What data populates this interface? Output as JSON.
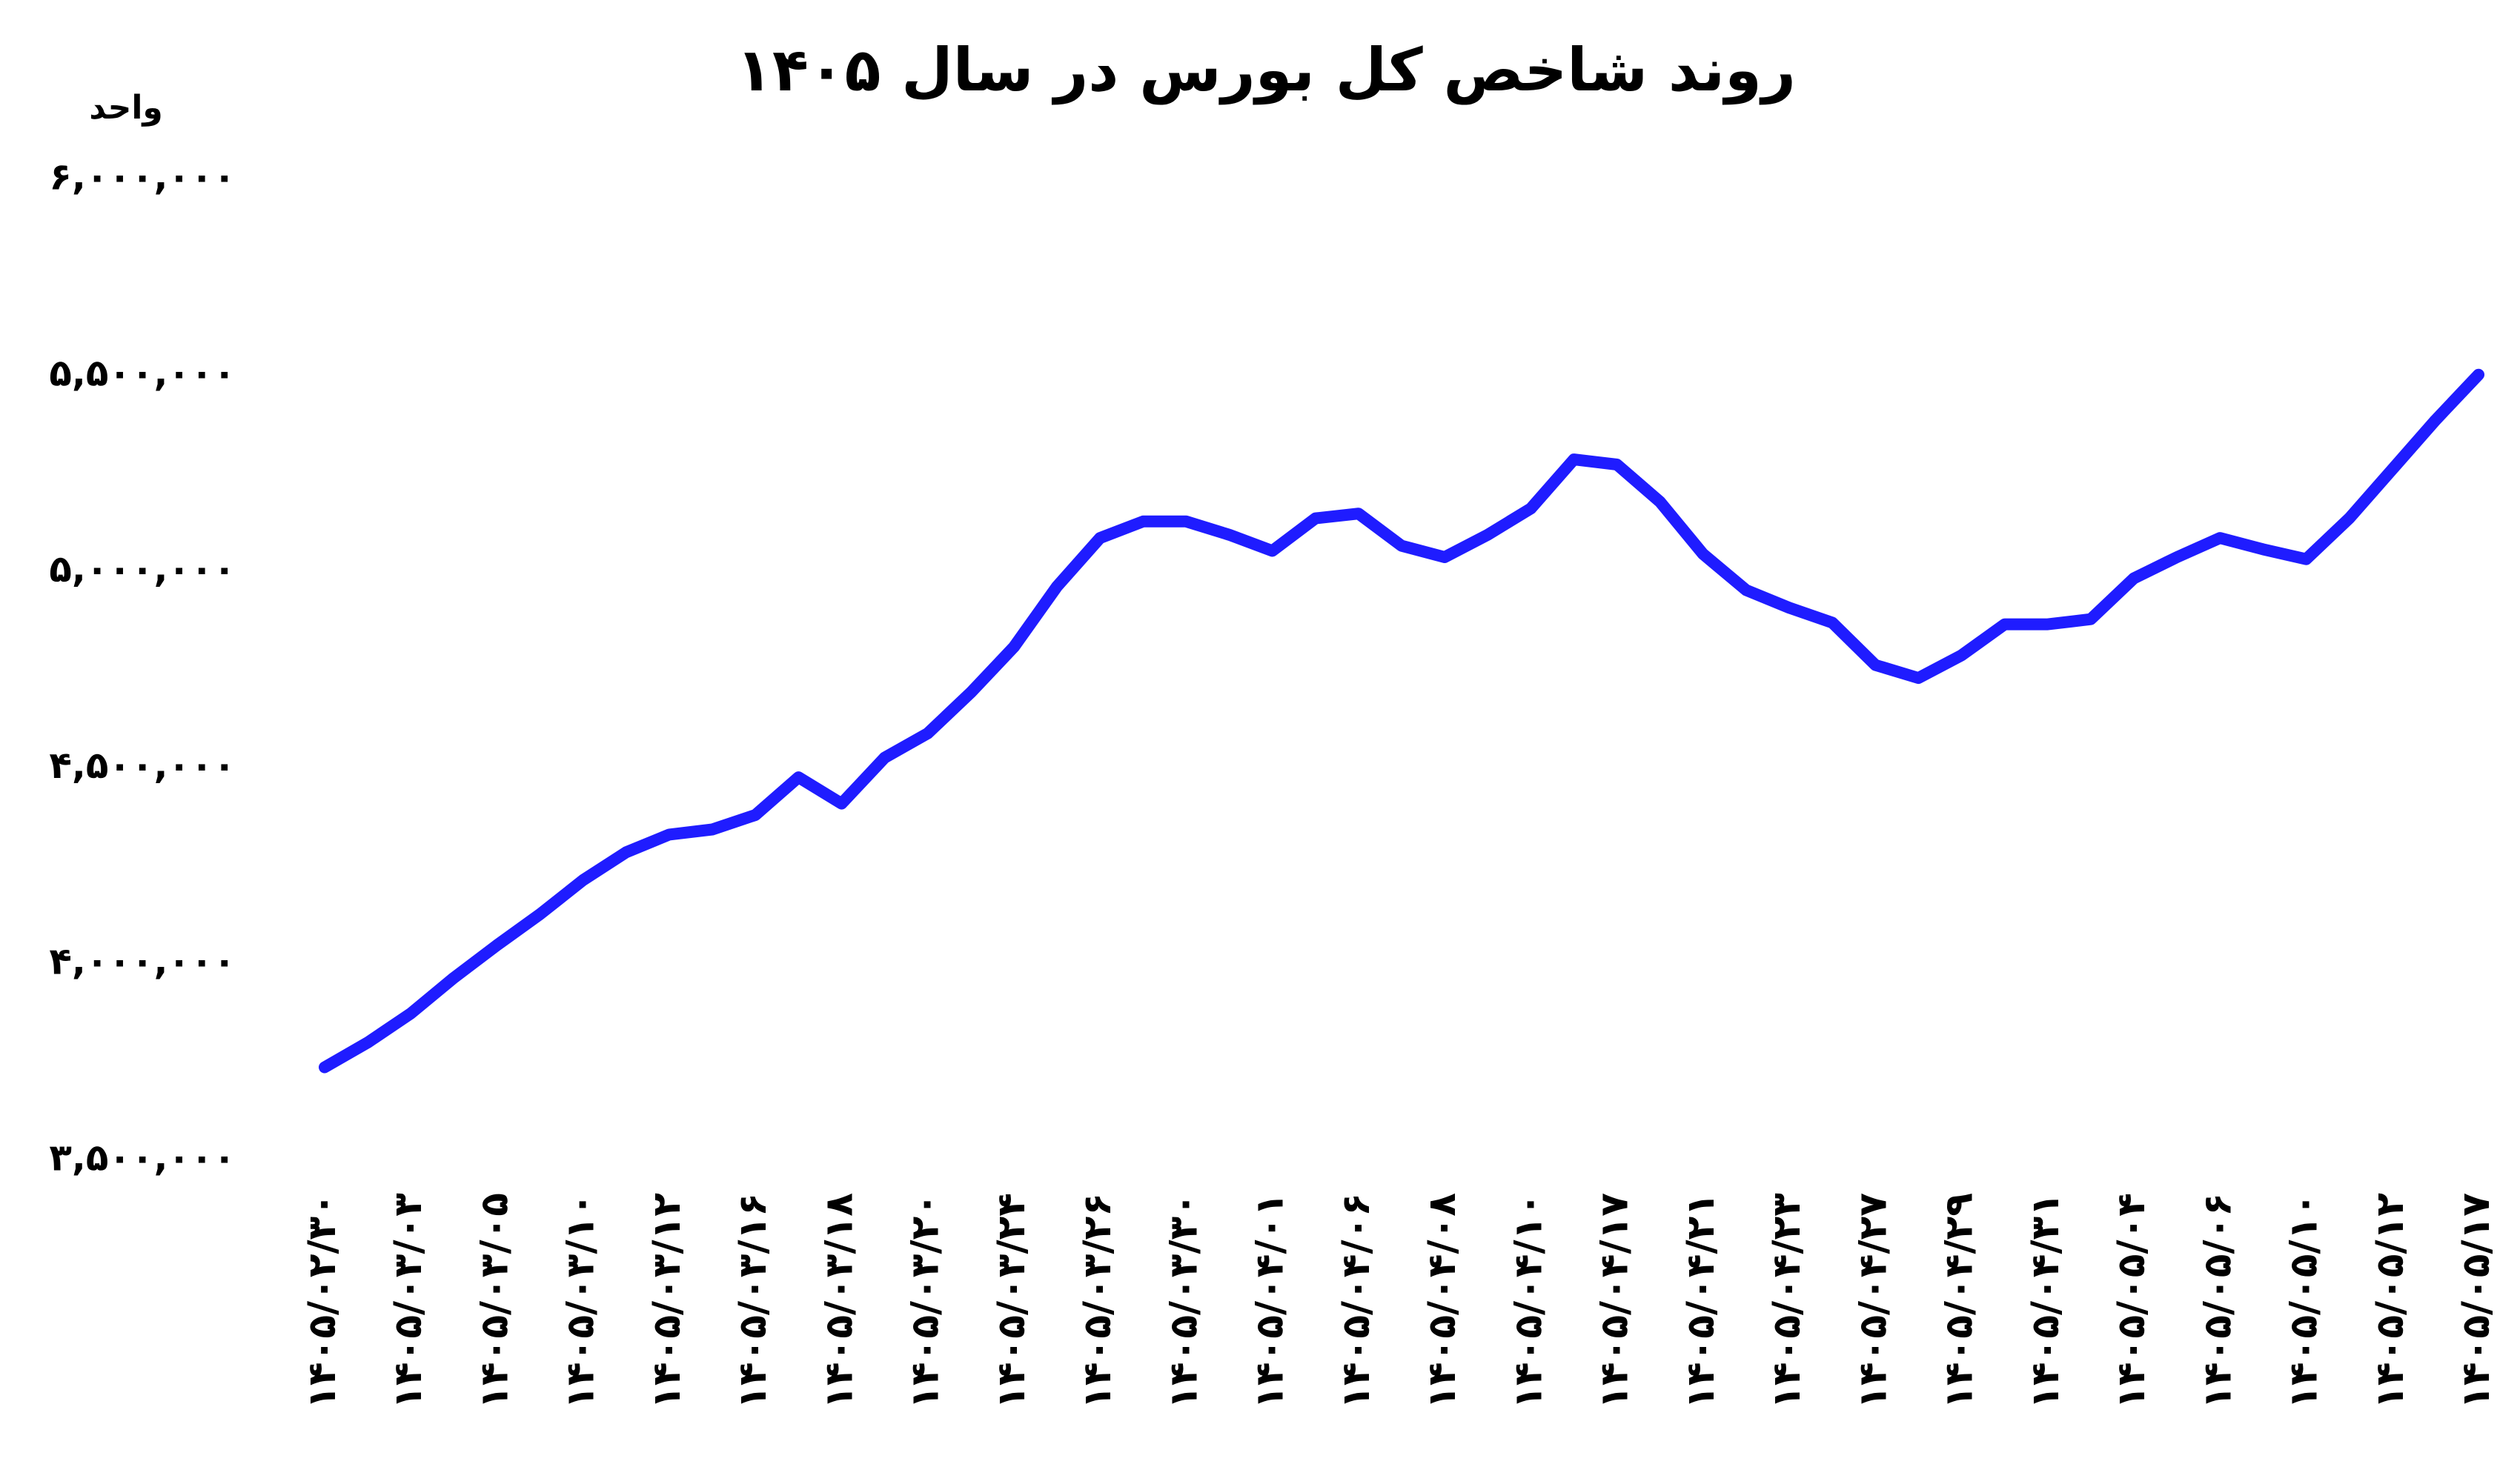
{
  "chart_data": {
    "type": "line",
    "title": "روند شاخص کل بورس در سال ۱۴۰۵",
    "y_label": "واحد",
    "categories": [
      "۱۴۰۵/۰۲/۳۰",
      null,
      "۱۴۰۵/۰۳/۰۳",
      null,
      "۱۴۰۵/۰۳/۰۵",
      null,
      "۱۴۰۵/۰۳/۱۰",
      null,
      "۱۴۰۵/۰۳/۱۲",
      null,
      "۱۴۰۵/۰۳/۱۶",
      null,
      "۱۴۰۵/۰۳/۱۸",
      null,
      "۱۴۰۵/۰۳/۲۰",
      null,
      "۱۴۰۵/۰۳/۲۴",
      null,
      "۱۴۰۵/۰۳/۲۶",
      null,
      "۱۴۰۵/۰۳/۳۰",
      null,
      "۱۴۰۵/۰۴/۰۱",
      null,
      "۱۴۰۵/۰۴/۰۶",
      null,
      "۱۴۰۵/۰۴/۰۸",
      null,
      "۱۴۰۵/۰۴/۱۰",
      null,
      "۱۴۰۵/۰۴/۱۷",
      null,
      "۱۴۰۵/۰۴/۲۱",
      null,
      "۱۴۰۵/۰۴/۲۳",
      null,
      "۱۴۰۵/۰۴/۲۷",
      null,
      "۱۴۰۵/۰۴/۲۹",
      null,
      "۱۴۰۵/۰۴/۳۱",
      null,
      "۱۴۰۵/۰۵/۰۴",
      null,
      "۱۴۰۵/۰۵/۰۶",
      null,
      "۱۴۰۵/۰۵/۱۰",
      null,
      "۱۴۰۵/۰۵/۱۲",
      null,
      "۱۴۰۵/۰۵/۱۷"
    ],
    "values": [
      3737000,
      3800000,
      3874000,
      3965000,
      4048000,
      4127000,
      4214000,
      4285000,
      4330000,
      4343000,
      4380000,
      4476000,
      4409000,
      4526000,
      4588000,
      4692000,
      4808000,
      4962000,
      5086000,
      5128000,
      5128000,
      5094000,
      5053000,
      5136000,
      5148000,
      5066000,
      5037000,
      5094000,
      5161000,
      5286000,
      5273000,
      5178000,
      5045000,
      4953000,
      4908000,
      4870000,
      4762000,
      4729000,
      4787000,
      4866000,
      4866000,
      4879000,
      4983000,
      5037000,
      5086000,
      5057000,
      5032000,
      5136000,
      5261000,
      5386000,
      5502000
    ],
    "color": "#1f1cff",
    "ylim": [
      3500000,
      6000000
    ],
    "yticks": [
      {
        "value": 3500000,
        "label": "۳,۵۰۰,۰۰۰"
      },
      {
        "value": 4000000,
        "label": "۴,۰۰۰,۰۰۰"
      },
      {
        "value": 4500000,
        "label": "۴,۵۰۰,۰۰۰"
      },
      {
        "value": 5000000,
        "label": "۵,۰۰۰,۰۰۰"
      },
      {
        "value": 5500000,
        "label": "۵,۵۰۰,۰۰۰"
      },
      {
        "value": 6000000,
        "label": "۶,۰۰۰,۰۰۰"
      }
    ],
    "grid": false
  }
}
